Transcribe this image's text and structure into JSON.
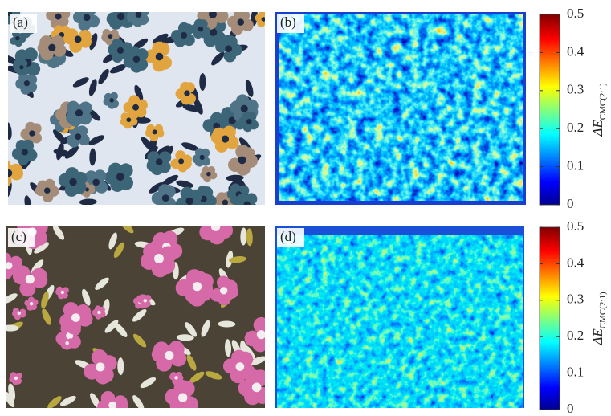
{
  "panels": [
    {
      "label": "(a)"
    },
    {
      "label": "(b)"
    },
    {
      "label": "(c)"
    },
    {
      "label": "(d)"
    }
  ],
  "colorbars": [
    {
      "range": [
        0,
        0.5
      ],
      "ticks": [
        0,
        0.1,
        0.2,
        0.3,
        0.4,
        0.5
      ],
      "label": "ΔE",
      "subscript": "CMC(2:1)"
    },
    {
      "range": [
        0,
        0.5
      ],
      "ticks": [
        0,
        0.1,
        0.2,
        0.3,
        0.4,
        0.5
      ],
      "label": "ΔE",
      "subscript": "CMC(2:1)"
    }
  ]
}
